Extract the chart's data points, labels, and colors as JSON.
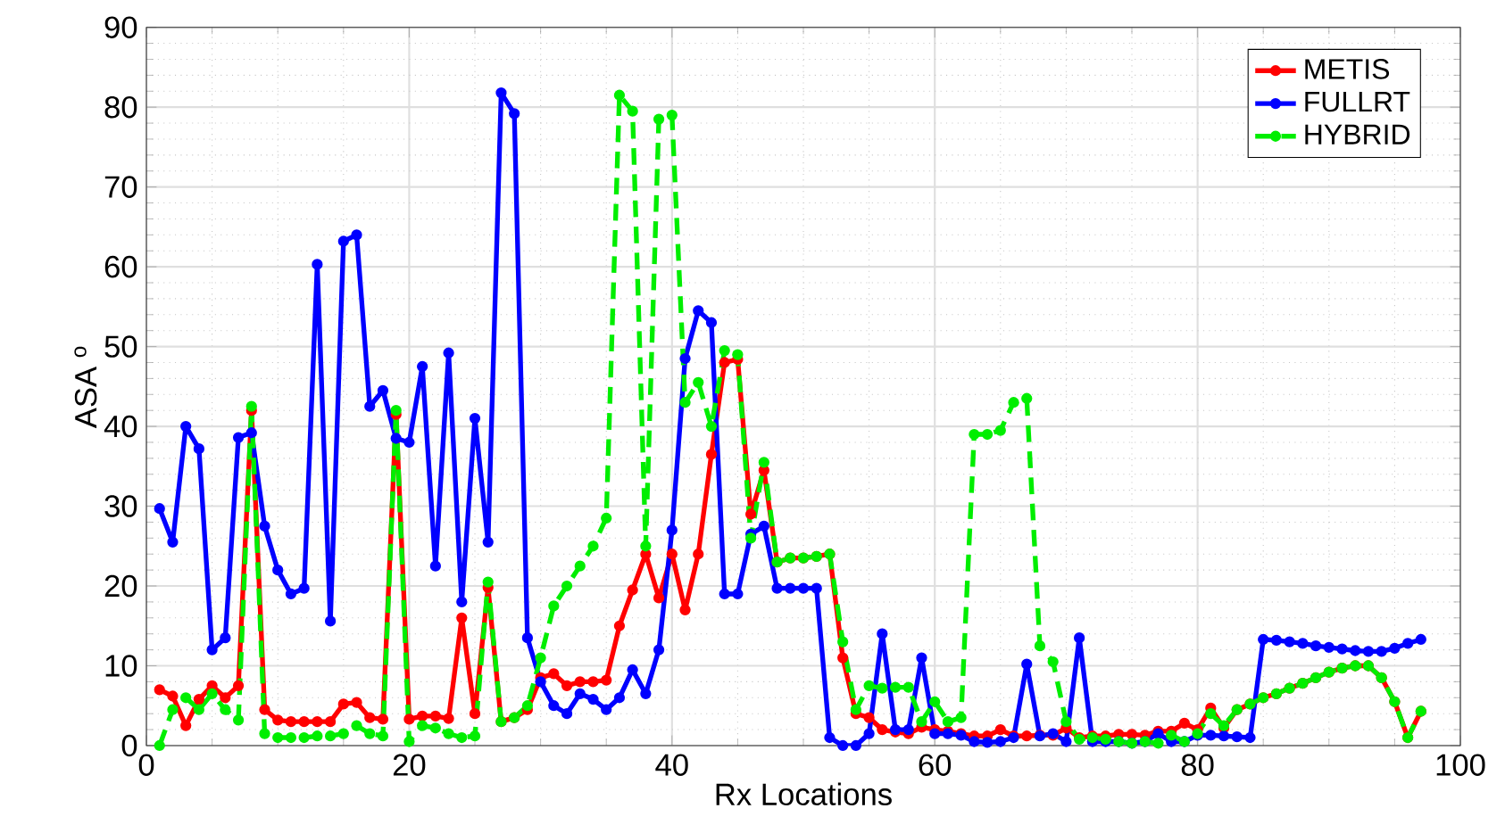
{
  "chart_data": {
    "type": "line",
    "xlabel": "Rx Locations",
    "ylabel": "ASA $^{o}$",
    "x": [
      1,
      2,
      3,
      4,
      5,
      6,
      7,
      8,
      9,
      10,
      11,
      12,
      13,
      14,
      15,
      16,
      17,
      18,
      19,
      20,
      21,
      22,
      23,
      24,
      25,
      26,
      27,
      28,
      29,
      30,
      31,
      32,
      33,
      34,
      35,
      36,
      37,
      38,
      39,
      40,
      41,
      42,
      43,
      44,
      45,
      46,
      47,
      48,
      49,
      50,
      51,
      52,
      53,
      54,
      55,
      56,
      57,
      58,
      59,
      60,
      61,
      62,
      63,
      64,
      65,
      66,
      67,
      68,
      69,
      70,
      71,
      72,
      73,
      74,
      75,
      76,
      77,
      78,
      79,
      80,
      81,
      82,
      83,
      84,
      85,
      86,
      87,
      88,
      89,
      90,
      91,
      92,
      93,
      94,
      95,
      96,
      97
    ],
    "series": [
      {
        "name": "METIS",
        "color": "#ff0000",
        "line_style": "solid",
        "values": [
          7,
          6.2,
          2.5,
          5.8,
          7.5,
          6,
          7.5,
          42,
          4.5,
          3.2,
          3,
          3,
          3,
          3,
          5.2,
          5.4,
          3.5,
          3.3,
          41.5,
          3.3,
          3.7,
          3.7,
          3.4,
          16,
          4,
          19.8,
          3,
          3.5,
          4.5,
          8.5,
          9,
          7.5,
          8,
          8,
          8.2,
          15,
          19.5,
          24,
          18.5,
          24,
          17,
          24,
          36.5,
          48,
          48.4,
          29,
          34.5,
          23,
          23.5,
          23.5,
          23.7,
          24,
          11,
          4,
          3.5,
          2,
          1.7,
          1.5,
          2.3,
          2,
          1.8,
          1.5,
          1.2,
          1.2,
          2,
          1.2,
          1.2,
          1.3,
          1.3,
          2.2,
          1,
          1.2,
          1.2,
          1.4,
          1.4,
          1.3,
          1.8,
          1.8,
          2.8,
          2,
          4.7,
          2.2,
          4.5,
          5.2,
          6,
          6.5,
          7.2,
          7.8,
          8.5,
          9.2,
          9.7,
          10,
          10,
          8.5,
          5.5,
          1,
          4.3
        ]
      },
      {
        "name": "FULLRT",
        "color": "#0000ff",
        "line_style": "solid",
        "values": [
          29.7,
          25.5,
          40,
          37.2,
          12,
          13.5,
          38.6,
          39.2,
          27.5,
          22,
          19,
          19.7,
          60.3,
          15.6,
          63.2,
          64,
          42.5,
          44.5,
          38.5,
          38,
          47.5,
          22.5,
          49.2,
          18,
          41,
          25.5,
          81.8,
          79.2,
          13.5,
          8,
          5,
          4,
          6.5,
          5.8,
          4.5,
          6,
          9.5,
          6.5,
          12,
          27,
          48.5,
          54.5,
          53,
          19,
          19,
          26.5,
          27.5,
          19.7,
          19.7,
          19.7,
          19.7,
          1,
          0,
          0,
          1.5,
          14,
          2,
          2,
          11,
          1.5,
          1.5,
          1.3,
          0.5,
          0.4,
          0.5,
          1,
          10.2,
          1.2,
          1.5,
          0.5,
          13.5,
          0.5,
          0.5,
          0.5,
          0.3,
          0.5,
          1.5,
          0.5,
          0.5,
          1.3,
          1.3,
          1.2,
          1.1,
          1,
          13.3,
          13.2,
          13,
          12.8,
          12.5,
          12.3,
          12.1,
          11.9,
          11.8,
          11.8,
          12.2,
          12.8,
          13.3
        ]
      },
      {
        "name": "HYBRID",
        "color": "#00ee00",
        "line_style": "dashed",
        "values": [
          0,
          4.5,
          6,
          4.5,
          6.5,
          4.5,
          3.2,
          42.5,
          1.5,
          1,
          1,
          1,
          1.2,
          1.2,
          1.5,
          2.5,
          1.5,
          1.2,
          42,
          0.5,
          2.5,
          2.2,
          1.5,
          1,
          1.2,
          20.5,
          3,
          3.5,
          5,
          11,
          17.5,
          20,
          22.5,
          25,
          28.5,
          81.5,
          79.5,
          25,
          78.5,
          79,
          43,
          45.5,
          40,
          49.5,
          49,
          26,
          35.5,
          23,
          23.5,
          23.5,
          23.7,
          24,
          13,
          4.5,
          7.5,
          7.2,
          7.3,
          7.3,
          3,
          5.5,
          3,
          3.5,
          39,
          39,
          39.5,
          43,
          43.5,
          12.5,
          10.5,
          3,
          0.8,
          1,
          0.8,
          0.5,
          0.3,
          0.5,
          0.3,
          1.3,
          0.5,
          1.5,
          4,
          2.5,
          4.5,
          5.2,
          6,
          6.5,
          7.2,
          7.8,
          8.5,
          9.2,
          9.7,
          10,
          10,
          8.5,
          5.5,
          1,
          4.3
        ]
      }
    ],
    "xlim": [
      0,
      100
    ],
    "xticks": [
      0,
      20,
      40,
      60,
      80,
      100
    ],
    "ylim": [
      0,
      90
    ],
    "yticks": [
      0,
      10,
      20,
      30,
      40,
      50,
      60,
      70,
      80,
      90
    ],
    "grid": true,
    "legend": "top right",
    "marker": "circle"
  }
}
